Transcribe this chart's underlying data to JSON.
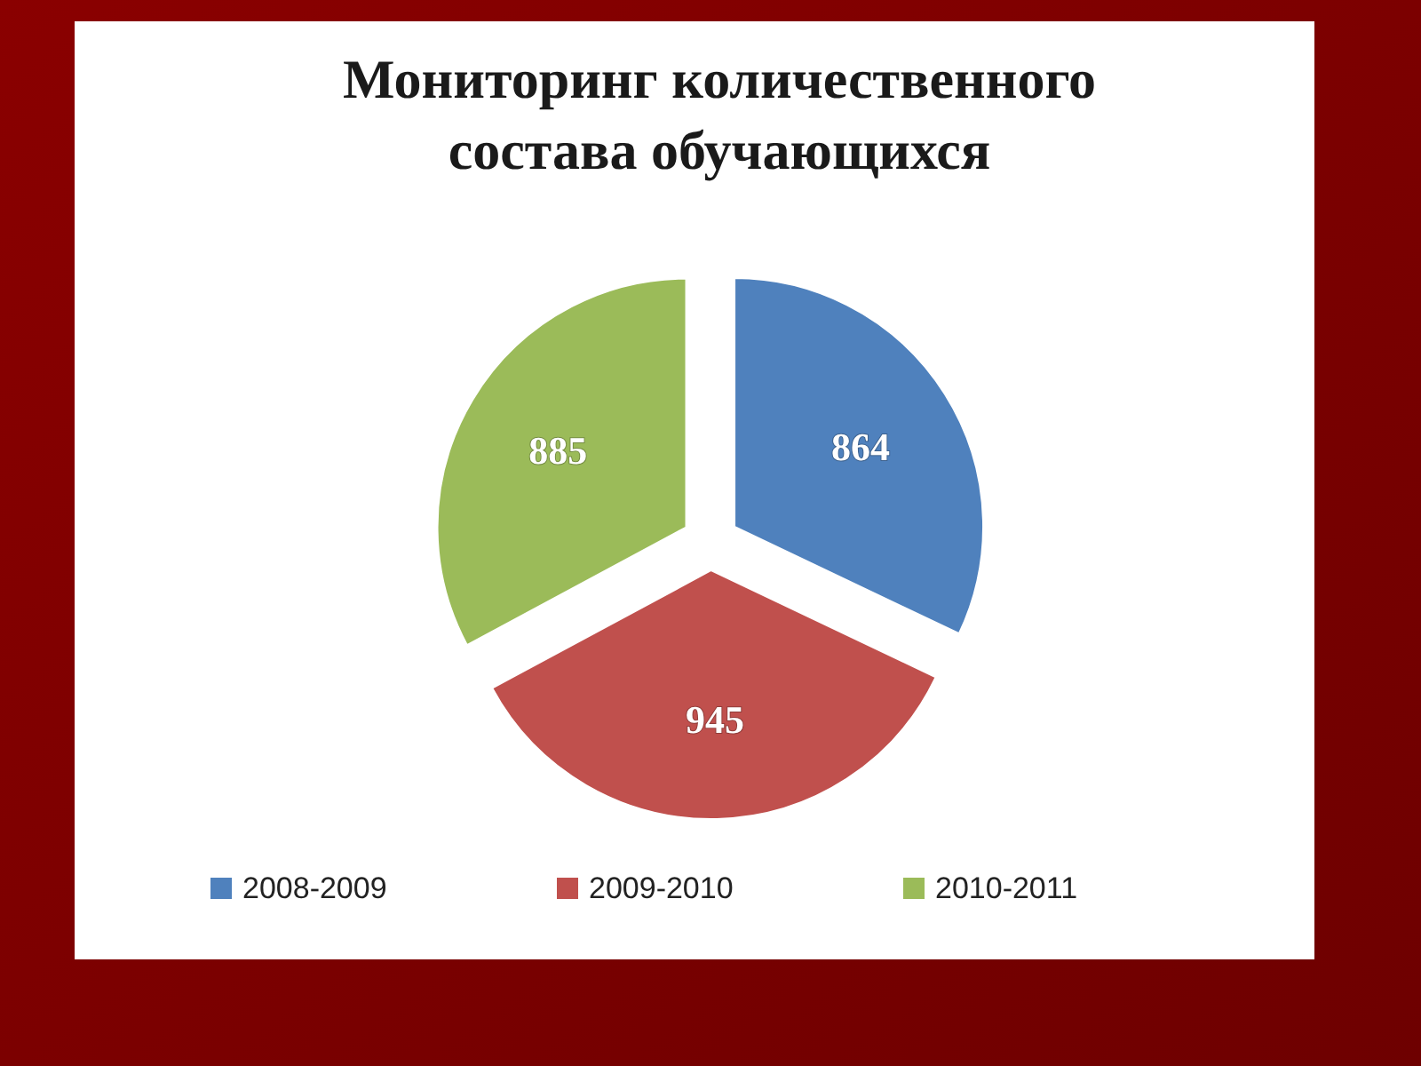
{
  "chart_data": {
    "type": "pie",
    "title": "Мониторинг количественного состава обучающихся",
    "categories": [
      "2008-2009",
      "2009-2010",
      "2010-2011"
    ],
    "values": [
      864,
      945,
      885
    ],
    "colors": [
      "#4f81bd",
      "#c0504d",
      "#9bbb59"
    ],
    "data_labels": true,
    "legend": "bottom"
  }
}
